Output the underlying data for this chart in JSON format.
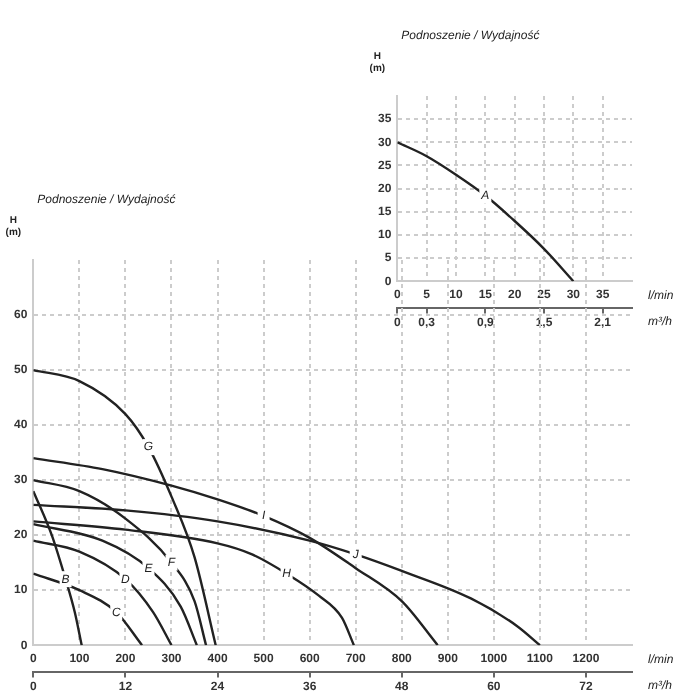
{
  "chart_data": [
    {
      "type": "line",
      "title": "Podnoszenie / Wydajność",
      "ylabel": "H (m)",
      "xlabel": "l/min",
      "x2label": "m³/h",
      "xlim": [
        0,
        40
      ],
      "xticks": [
        0,
        5,
        10,
        15,
        20,
        25,
        30,
        35
      ],
      "x2lim": [
        0,
        2.4
      ],
      "x2ticks": [
        0,
        {
          "value": 0.3,
          "label": "0,3"
        },
        {
          "value": 0.9,
          "label": "0,9"
        },
        {
          "value": 1.5,
          "label": "1,5"
        },
        {
          "value": 2.1,
          "label": "2,1"
        }
      ],
      "ylim": [
        0,
        40
      ],
      "yticks": [
        0,
        5,
        10,
        15,
        20,
        25,
        30,
        35
      ],
      "grid": true,
      "legend": false,
      "marker": "none",
      "line_style": "solid",
      "series": [
        {
          "name": "A",
          "color": "#222222",
          "x": [
            0,
            5,
            10,
            15,
            20,
            25,
            30
          ],
          "values": [
            30,
            27,
            23,
            18.5,
            13,
            7,
            0
          ]
        }
      ]
    },
    {
      "type": "line",
      "title": "Podnoszenie / Wydajność",
      "ylabel": "H (m)",
      "xlabel": "l/min",
      "x2label": "m³/h",
      "xlim": [
        0,
        1300
      ],
      "xticks": [
        0,
        100,
        200,
        300,
        400,
        500,
        600,
        700,
        800,
        900,
        1000,
        1100,
        1200
      ],
      "x2lim": [
        0,
        78
      ],
      "x2ticks": [
        0,
        12,
        24,
        36,
        48,
        60,
        72
      ],
      "ylim": [
        0,
        70
      ],
      "yticks": [
        0,
        10,
        20,
        30,
        40,
        50,
        60
      ],
      "grid": true,
      "legend": false,
      "marker": "none",
      "line_style": "solid",
      "series": [
        {
          "name": "B",
          "color": "#222222",
          "x": [
            0,
            40,
            70,
            90,
            105
          ],
          "values": [
            28,
            20,
            12,
            6,
            0
          ]
        },
        {
          "name": "C",
          "color": "#222222",
          "x": [
            0,
            100,
            180,
            236
          ],
          "values": [
            13,
            10,
            6,
            0
          ]
        },
        {
          "name": "D",
          "color": "#222222",
          "x": [
            0,
            100,
            200,
            260,
            300
          ],
          "values": [
            19,
            17,
            12,
            6,
            0
          ]
        },
        {
          "name": "E",
          "color": "#222222",
          "x": [
            0,
            150,
            250,
            320,
            355
          ],
          "values": [
            22,
            19,
            14,
            7,
            0
          ]
        },
        {
          "name": "F",
          "color": "#222222",
          "x": [
            0,
            100,
            200,
            300,
            350,
            375
          ],
          "values": [
            30,
            28,
            23,
            15,
            8,
            0
          ]
        },
        {
          "name": "G",
          "color": "#222222",
          "x": [
            0,
            100,
            200,
            250,
            300,
            350,
            396
          ],
          "values": [
            50,
            48,
            42,
            36,
            27,
            16,
            0
          ]
        },
        {
          "name": "H",
          "color": "#222222",
          "x": [
            0,
            200,
            400,
            475,
            550,
            620,
            670,
            696
          ],
          "values": [
            22.5,
            21,
            18.5,
            16.5,
            13,
            9,
            5,
            0
          ]
        },
        {
          "name": "I",
          "color": "#222222",
          "x": [
            0,
            150,
            300,
            400,
            500,
            600,
            700,
            800,
            878
          ],
          "values": [
            34,
            32,
            29,
            26.5,
            23.5,
            19.5,
            14,
            8,
            0
          ]
        },
        {
          "name": "J",
          "color": "#222222",
          "x": [
            0,
            200,
            400,
            600,
            700,
            800,
            950,
            1050,
            1100
          ],
          "values": [
            25.5,
            24.5,
            22.5,
            19,
            16.5,
            13.5,
            8.5,
            3.5,
            0
          ]
        }
      ]
    }
  ]
}
